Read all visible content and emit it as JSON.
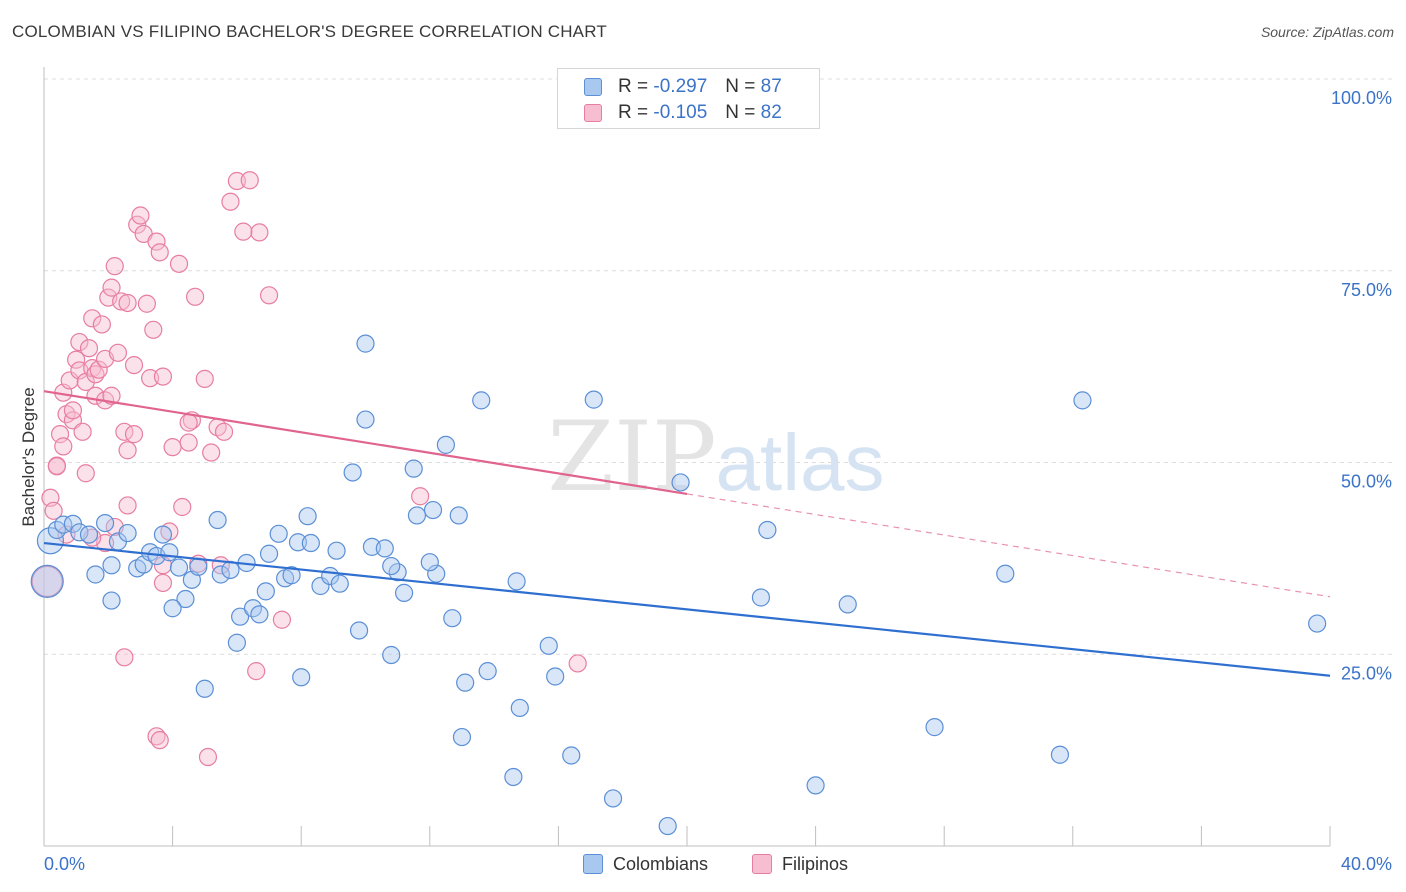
{
  "title": "COLOMBIAN VS FILIPINO BACHELOR'S DEGREE CORRELATION CHART",
  "source": "Source: ZipAtlas.com",
  "colors": {
    "colombian_fill": "#a9c8ef",
    "colombian_stroke": "#5b8fd6",
    "colombian_line": "#2f6fd0",
    "filipino_fill": "#f7bdd0",
    "filipino_stroke": "#e77ea0",
    "filipino_line": "#e0648d",
    "axis_label": "#3b73c8",
    "grid": "#dcdcdc"
  },
  "legend_top": {
    "rows": [
      {
        "r_label": "R =",
        "r_value": "-0.297",
        "n_label": "N =",
        "n_value": "87"
      },
      {
        "r_label": "R =",
        "r_value": "-0.105",
        "n_label": "N =",
        "n_value": "82"
      }
    ]
  },
  "legend_bottom": {
    "colombians": "Colombians",
    "filipinos": "Filipinos"
  },
  "watermark": {
    "zip": "ZIP",
    "atlas": "atlas"
  },
  "chart_data": {
    "type": "scatter",
    "title": "COLOMBIAN VS FILIPINO BACHELOR'S DEGREE CORRELATION CHART",
    "ylabel": "Bachelor's Degree",
    "xlabel": "",
    "xlim": [
      0,
      40
    ],
    "ylim": [
      0,
      100
    ],
    "x_tick_labels": [
      "0.0%",
      "40.0%"
    ],
    "y_ticks": [
      25,
      50,
      75,
      100
    ],
    "y_tick_labels": [
      "25.0%",
      "50.0%",
      "75.0%",
      "100.0%"
    ],
    "grid": true,
    "series": [
      {
        "name": "Colombians",
        "r": -0.297,
        "n": 87,
        "trend": {
          "x0": 0,
          "y0": 39.5,
          "x1": 40,
          "y1": 22.2
        },
        "points": [
          [
            0.1,
            34.5
          ],
          [
            0.2,
            39.8
          ],
          [
            0.4,
            41.2
          ],
          [
            0.6,
            41.9
          ],
          [
            0.9,
            42.0
          ],
          [
            1.1,
            40.9
          ],
          [
            1.4,
            40.6
          ],
          [
            1.6,
            35.4
          ],
          [
            1.9,
            42.1
          ],
          [
            2.1,
            36.6
          ],
          [
            2.3,
            39.7
          ],
          [
            2.6,
            40.8
          ],
          [
            2.9,
            36.2
          ],
          [
            3.1,
            36.7
          ],
          [
            3.3,
            38.3
          ],
          [
            3.5,
            37.8
          ],
          [
            3.7,
            40.6
          ],
          [
            3.9,
            38.3
          ],
          [
            4.2,
            36.3
          ],
          [
            4.4,
            32.2
          ],
          [
            4.6,
            34.7
          ],
          [
            4.8,
            36.4
          ],
          [
            5.4,
            42.5
          ],
          [
            5.5,
            35.4
          ],
          [
            5.8,
            36.0
          ],
          [
            6.1,
            29.9
          ],
          [
            6.3,
            36.9
          ],
          [
            6.5,
            31.0
          ],
          [
            6.7,
            30.2
          ],
          [
            6.9,
            33.2
          ],
          [
            7.0,
            38.1
          ],
          [
            7.3,
            40.7
          ],
          [
            7.5,
            34.9
          ],
          [
            7.7,
            35.3
          ],
          [
            7.9,
            39.6
          ],
          [
            8.2,
            43.0
          ],
          [
            8.3,
            39.5
          ],
          [
            8.6,
            33.9
          ],
          [
            8.9,
            35.2
          ],
          [
            9.1,
            38.5
          ],
          [
            9.2,
            34.2
          ],
          [
            9.6,
            48.7
          ],
          [
            9.8,
            28.1
          ],
          [
            10.0,
            55.6
          ],
          [
            10.2,
            39.0
          ],
          [
            10.6,
            38.8
          ],
          [
            10.8,
            24.9
          ],
          [
            11.0,
            35.7
          ],
          [
            11.2,
            33.0
          ],
          [
            11.5,
            49.2
          ],
          [
            11.6,
            43.1
          ],
          [
            12.1,
            43.8
          ],
          [
            12.2,
            35.5
          ],
          [
            12.5,
            52.3
          ],
          [
            12.7,
            29.7
          ],
          [
            12.9,
            43.1
          ],
          [
            13.1,
            21.3
          ],
          [
            13.6,
            58.1
          ],
          [
            13.8,
            22.8
          ],
          [
            14.6,
            9.0
          ],
          [
            14.7,
            34.5
          ],
          [
            14.8,
            18.0
          ],
          [
            15.7,
            26.1
          ],
          [
            15.9,
            22.1
          ],
          [
            16.4,
            11.8
          ],
          [
            17.1,
            58.2
          ],
          [
            17.7,
            6.2
          ],
          [
            19.8,
            47.4
          ],
          [
            19.4,
            2.6
          ],
          [
            22.5,
            41.2
          ],
          [
            22.3,
            32.4
          ],
          [
            24.0,
            7.9
          ],
          [
            25.0,
            31.5
          ],
          [
            27.7,
            15.5
          ],
          [
            29.9,
            35.5
          ],
          [
            31.6,
            11.9
          ],
          [
            32.3,
            58.1
          ],
          [
            39.6,
            29.0
          ],
          [
            2.1,
            32.0
          ],
          [
            4.0,
            31.0
          ],
          [
            6.0,
            26.5
          ],
          [
            8.0,
            22.0
          ],
          [
            10.8,
            36.5
          ],
          [
            12.0,
            37.0
          ],
          [
            10.0,
            65.5
          ],
          [
            5.0,
            20.5
          ],
          [
            13.0,
            14.2
          ]
        ]
      },
      {
        "name": "Filipinos",
        "r": -0.105,
        "n": 82,
        "trend": {
          "x0": 0,
          "y0": 59.3,
          "x1": 20,
          "y1": 45.9,
          "dash_x1": 40,
          "dash_y1": 32.5
        },
        "points": [
          [
            0.1,
            34.5
          ],
          [
            0.2,
            45.4
          ],
          [
            0.3,
            43.7
          ],
          [
            0.4,
            49.6
          ],
          [
            0.5,
            53.7
          ],
          [
            0.6,
            52.1
          ],
          [
            0.6,
            59.1
          ],
          [
            0.7,
            56.3
          ],
          [
            0.8,
            60.7
          ],
          [
            0.9,
            55.5
          ],
          [
            0.9,
            56.8
          ],
          [
            1.0,
            63.4
          ],
          [
            1.1,
            62.0
          ],
          [
            1.1,
            65.7
          ],
          [
            1.2,
            54.0
          ],
          [
            1.3,
            60.5
          ],
          [
            1.4,
            64.9
          ],
          [
            1.5,
            62.3
          ],
          [
            1.5,
            68.8
          ],
          [
            1.6,
            58.7
          ],
          [
            1.6,
            61.5
          ],
          [
            1.7,
            62.1
          ],
          [
            1.8,
            68.0
          ],
          [
            1.9,
            58.1
          ],
          [
            1.9,
            63.5
          ],
          [
            2.0,
            71.5
          ],
          [
            2.1,
            72.8
          ],
          [
            2.1,
            58.7
          ],
          [
            2.2,
            75.6
          ],
          [
            2.3,
            64.3
          ],
          [
            2.4,
            71.0
          ],
          [
            2.5,
            54.0
          ],
          [
            2.6,
            51.6
          ],
          [
            2.6,
            70.8
          ],
          [
            2.8,
            53.7
          ],
          [
            2.9,
            81.0
          ],
          [
            3.0,
            82.2
          ],
          [
            3.1,
            79.8
          ],
          [
            3.2,
            70.7
          ],
          [
            3.3,
            61.0
          ],
          [
            3.4,
            67.3
          ],
          [
            3.5,
            78.8
          ],
          [
            3.6,
            77.4
          ],
          [
            3.7,
            61.2
          ],
          [
            3.9,
            41.0
          ],
          [
            4.0,
            52.0
          ],
          [
            4.2,
            75.9
          ],
          [
            4.3,
            44.2
          ],
          [
            4.5,
            52.6
          ],
          [
            4.6,
            55.5
          ],
          [
            4.7,
            71.6
          ],
          [
            4.8,
            36.8
          ],
          [
            5.0,
            60.9
          ],
          [
            5.2,
            51.3
          ],
          [
            5.4,
            54.6
          ],
          [
            5.6,
            54.0
          ],
          [
            5.8,
            84.0
          ],
          [
            6.0,
            86.7
          ],
          [
            6.4,
            86.8
          ],
          [
            6.7,
            80.0
          ],
          [
            7.0,
            71.8
          ],
          [
            7.4,
            29.5
          ],
          [
            2.5,
            24.6
          ],
          [
            3.5,
            14.3
          ],
          [
            3.6,
            13.8
          ],
          [
            5.1,
            11.6
          ],
          [
            6.6,
            22.8
          ],
          [
            11.7,
            45.6
          ],
          [
            16.6,
            23.8
          ],
          [
            3.7,
            34.3
          ],
          [
            2.6,
            44.4
          ],
          [
            2.2,
            41.6
          ],
          [
            1.3,
            48.6
          ],
          [
            0.4,
            49.5
          ],
          [
            1.9,
            39.5
          ],
          [
            4.5,
            55.2
          ],
          [
            6.2,
            80.1
          ],
          [
            3.7,
            36.6
          ],
          [
            1.5,
            40.2
          ],
          [
            2.8,
            62.7
          ],
          [
            0.7,
            40.6
          ],
          [
            5.5,
            36.6
          ]
        ]
      }
    ]
  }
}
